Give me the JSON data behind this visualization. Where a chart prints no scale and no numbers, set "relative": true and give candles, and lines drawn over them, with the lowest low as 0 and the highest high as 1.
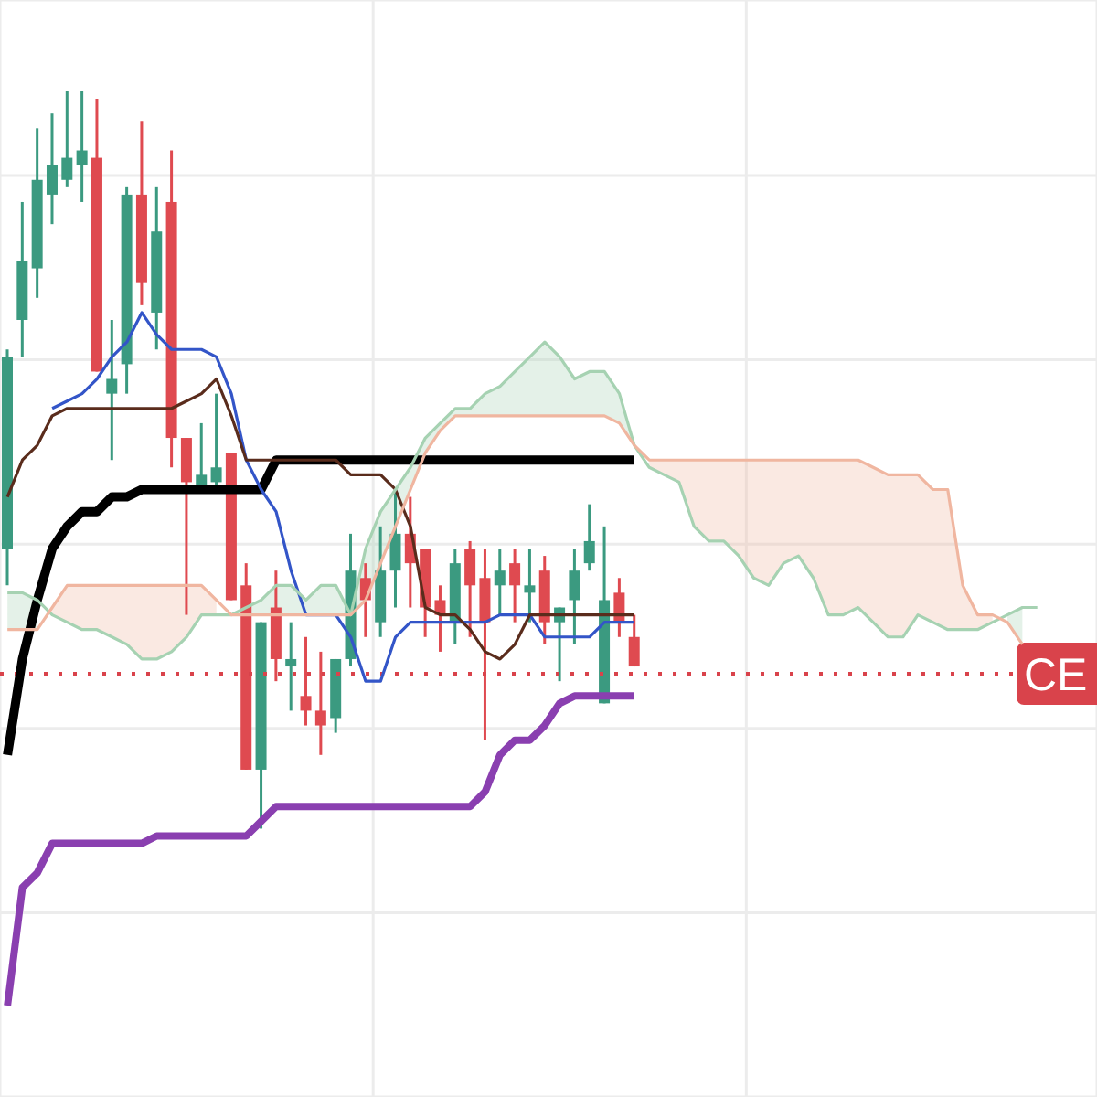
{
  "chart_data": {
    "type": "candlestick",
    "relative": true,
    "grid": true,
    "categories": [
      null,
      null,
      null,
      null,
      null,
      null,
      null,
      null,
      null,
      null,
      null,
      null,
      null,
      null,
      null,
      null,
      null,
      null,
      null,
      null,
      null,
      null,
      null,
      null,
      null,
      null,
      null,
      null,
      null,
      null,
      null,
      null,
      null,
      null,
      null,
      null,
      null,
      null,
      null,
      null,
      null,
      null,
      null,
      null,
      null,
      null,
      null,
      null,
      null,
      null,
      null,
      null,
      null,
      null,
      null,
      null,
      null,
      null,
      null,
      null,
      null,
      null,
      null,
      null,
      null,
      null,
      null,
      null,
      null,
      null
    ],
    "ohlc": [
      [
        0.38,
        0.65,
        0.33,
        0.64
      ],
      [
        0.69,
        0.85,
        0.64,
        0.77
      ],
      [
        0.76,
        0.95,
        0.72,
        0.88
      ],
      [
        0.86,
        0.97,
        0.82,
        0.9
      ],
      [
        0.88,
        1.0,
        0.87,
        0.91
      ],
      [
        0.9,
        1.0,
        0.85,
        0.92
      ],
      [
        0.91,
        0.99,
        0.62,
        0.62
      ],
      [
        0.59,
        0.69,
        0.5,
        0.61
      ],
      [
        0.63,
        0.87,
        0.59,
        0.86
      ],
      [
        0.86,
        0.96,
        0.71,
        0.74
      ],
      [
        0.7,
        0.87,
        0.65,
        0.81
      ],
      [
        0.85,
        0.92,
        0.49,
        0.53
      ],
      [
        0.53,
        0.53,
        0.29,
        0.47
      ],
      [
        0.46,
        0.55,
        0.46,
        0.48
      ],
      [
        0.47,
        0.59,
        0.46,
        0.49
      ],
      [
        0.51,
        0.51,
        0.31,
        0.31
      ],
      [
        0.33,
        0.36,
        0.08,
        0.08
      ],
      [
        0.08,
        0.28,
        0,
        0.28
      ],
      [
        0.3,
        0.35,
        0.2,
        0.23
      ],
      [
        0.22,
        0.28,
        0.16,
        0.23
      ],
      [
        0.18,
        0.26,
        0.14,
        0.16
      ],
      [
        0.16,
        0.24,
        0.1,
        0.14
      ],
      [
        0.15,
        0.23,
        0.13,
        0.23
      ],
      [
        0.23,
        0.4,
        0.22,
        0.35
      ],
      [
        0.34,
        0.36,
        0.26,
        0.31
      ],
      [
        0.28,
        0.41,
        0.26,
        0.35
      ],
      [
        0.35,
        0.46,
        0.3,
        0.4
      ],
      [
        0.4,
        0.45,
        0.3,
        0.36
      ],
      [
        0.38,
        0.38,
        0.26,
        0.3
      ],
      [
        0.31,
        0.33,
        0.24,
        0.29
      ],
      [
        0.28,
        0.38,
        0.25,
        0.36
      ],
      [
        0.38,
        0.39,
        0.26,
        0.33
      ],
      [
        0.34,
        0.38,
        0.12,
        0.28
      ],
      [
        0.33,
        0.38,
        0.29,
        0.35
      ],
      [
        0.36,
        0.38,
        0.28,
        0.33
      ],
      [
        0.32,
        0.38,
        0.28,
        0.33
      ],
      [
        0.35,
        0.37,
        0.25,
        0.28
      ],
      [
        0.28,
        0.3,
        0.2,
        0.3
      ],
      [
        0.31,
        0.38,
        0.25,
        0.35
      ],
      [
        0.36,
        0.44,
        0.35,
        0.39
      ],
      [
        0.17,
        0.41,
        0.17,
        0.31
      ],
      [
        0.32,
        0.34,
        0.26,
        0.28
      ],
      [
        0.26,
        0.29,
        0.22,
        0.22
      ],
      null,
      null,
      null,
      null,
      null,
      null,
      null,
      null,
      null,
      null,
      null,
      null,
      null,
      null,
      null,
      null,
      null,
      null,
      null,
      null,
      null,
      null,
      null,
      null,
      null,
      null,
      null
    ],
    "colors": [
      "#3b9a80",
      "#3b9a80",
      "#3b9a80",
      "#3b9a80",
      "#3b9a80",
      "#3b9a80",
      "#df4a50",
      "#3b9a80",
      "#3b9a80",
      "#df4a50",
      "#3b9a80",
      "#df4a50",
      "#df4a50",
      "#3b9a80",
      "#3b9a80",
      "#df4a50",
      "#df4a50",
      "#3b9a80",
      "#df4a50",
      "#3b9a80",
      "#df4a50",
      "#df4a50",
      "#3b9a80",
      "#3b9a80",
      "#df4a50",
      "#3b9a80",
      "#3b9a80",
      "#df4a50",
      "#df4a50",
      "#df4a50",
      "#3b9a80",
      "#df4a50",
      "#df4a50",
      "#3b9a80",
      "#df4a50",
      "#3b9a80",
      "#df4a50",
      "#3b9a80",
      "#3b9a80",
      "#3b9a80",
      "#3b9a80",
      "#df4a50",
      "#df4a50",
      null,
      null,
      null,
      null,
      null,
      null,
      null,
      null,
      null,
      null,
      null,
      null,
      null,
      null,
      null,
      null,
      null,
      null,
      null,
      null,
      null,
      null,
      null,
      null,
      null,
      null,
      null
    ],
    "series": [
      {
        "type": "line",
        "color": "#000000",
        "values": [
          0.1,
          0.23,
          0.31,
          0.38,
          0.41,
          0.43,
          0.43,
          0.45,
          0.45,
          0.46,
          0.46,
          0.46,
          0.46,
          0.46,
          0.46,
          0.46,
          0.46,
          0.46,
          0.5,
          0.5,
          0.5,
          0.5,
          0.5,
          0.5,
          0.5,
          0.5,
          0.5,
          0.5,
          0.5,
          0.5,
          0.5,
          0.5,
          0.5,
          0.5,
          0.5,
          0.5,
          0.5,
          0.5,
          0.5,
          0.5,
          0.5,
          0.5,
          0.5,
          null,
          null,
          null,
          null,
          null,
          null,
          null,
          null,
          null,
          null,
          null,
          null,
          null,
          null,
          null,
          null,
          null,
          null,
          null,
          null,
          null,
          null,
          null,
          null,
          null,
          null,
          null
        ]
      },
      {
        "type": "line",
        "color": "#8a3fb0",
        "values": [
          -0.24,
          -0.08,
          -0.06,
          -0.02,
          -0.02,
          -0.02,
          -0.02,
          -0.02,
          -0.02,
          -0.02,
          -0.01,
          -0.01,
          -0.01,
          -0.01,
          -0.01,
          -0.01,
          -0.01,
          0.01,
          0.03,
          0.03,
          0.03,
          0.03,
          0.03,
          0.03,
          0.03,
          0.03,
          0.03,
          0.03,
          0.03,
          0.03,
          0.03,
          0.03,
          0.05,
          0.1,
          0.12,
          0.12,
          0.14,
          0.17,
          0.18,
          0.18,
          0.18,
          0.18,
          0.18,
          null,
          null,
          null,
          null,
          null,
          null,
          null,
          null,
          null,
          null,
          null,
          null,
          null,
          null,
          null,
          null,
          null,
          null,
          null,
          null,
          null,
          null,
          null,
          null,
          null,
          null,
          null
        ]
      },
      {
        "type": "line",
        "color": "#3355c8",
        "values": [
          null,
          null,
          null,
          0.57,
          0.58,
          0.59,
          0.61,
          0.64,
          0.66,
          0.7,
          0.67,
          0.65,
          0.65,
          0.65,
          0.64,
          0.59,
          0.5,
          0.46,
          0.43,
          0.35,
          0.29,
          0.29,
          0.29,
          0.26,
          0.2,
          0.2,
          0.26,
          0.28,
          0.28,
          0.28,
          0.28,
          0.28,
          0.28,
          0.29,
          0.29,
          0.29,
          0.26,
          0.26,
          0.26,
          0.26,
          0.28,
          0.28,
          0.28,
          null,
          null,
          null,
          null,
          null,
          null,
          null,
          null,
          null,
          null,
          null,
          null,
          null,
          null,
          null,
          null,
          null,
          null,
          null,
          null,
          null,
          null,
          null,
          null,
          null,
          null,
          null
        ]
      },
      {
        "type": "line",
        "color": "#5a2c1c",
        "values": [
          0.45,
          0.5,
          0.52,
          0.56,
          0.57,
          0.57,
          0.57,
          0.57,
          0.57,
          0.57,
          0.57,
          0.57,
          0.58,
          0.59,
          0.61,
          0.56,
          0.5,
          0.5,
          0.5,
          0.5,
          0.5,
          0.5,
          0.5,
          0.48,
          0.48,
          0.48,
          0.46,
          0.41,
          0.3,
          0.29,
          0.29,
          0.27,
          0.24,
          0.23,
          0.25,
          0.29,
          0.29,
          0.29,
          0.29,
          0.29,
          0.29,
          0.29,
          0.29,
          null,
          null,
          null,
          null,
          null,
          null,
          null,
          null,
          null,
          null,
          null,
          null,
          null,
          null,
          null,
          null,
          null,
          null,
          null,
          null,
          null,
          null,
          null,
          null,
          null,
          null,
          null
        ]
      },
      {
        "type": "line",
        "color": "#a6d2b2",
        "upper": [
          0.32,
          0.32,
          0.31,
          null,
          null,
          null,
          null,
          null,
          null,
          null,
          null,
          null,
          null,
          null,
          null,
          0.29,
          0.3,
          0.31,
          0.33,
          0.33,
          0.31,
          0.33,
          0.33,
          0.29,
          0.38,
          0.43,
          0.46,
          0.49,
          0.53,
          0.55,
          0.57,
          0.57,
          0.59,
          0.6,
          0.62,
          0.64,
          0.66,
          0.64,
          0.61,
          0.62,
          0.62,
          0.59,
          0.52,
          null,
          null,
          null,
          null,
          null,
          null,
          null,
          null,
          null,
          null,
          null,
          null,
          null,
          null,
          null,
          null,
          null,
          null,
          null,
          null,
          null,
          null,
          null,
          null,
          0.29,
          0.3,
          null
        ],
        "lower": [
          0.27,
          0.27,
          0.27,
          null,
          null,
          null,
          null,
          null,
          null,
          null,
          null,
          null,
          null,
          null,
          null,
          0.29,
          0.29,
          0.29,
          0.29,
          0.29,
          0.29,
          0.29,
          0.29,
          0.29,
          0.31,
          0.36,
          0.41,
          0.46,
          0.51,
          0.54,
          0.56,
          0.56,
          0.56,
          0.56,
          0.56,
          0.56,
          0.56,
          0.56,
          0.56,
          0.56,
          0.56,
          0.55,
          0.52,
          null,
          null,
          null,
          null,
          null,
          null,
          null,
          null,
          null,
          null,
          null,
          null,
          null,
          null,
          null,
          null,
          null,
          null,
          null,
          null,
          null,
          null,
          null,
          null,
          0.28,
          0.25,
          null
        ],
        "values": [
          0.32,
          0.32,
          0.31,
          0.29,
          0.28,
          0.27,
          0.27,
          0.26,
          0.25,
          0.23,
          0.23,
          0.24,
          0.26,
          0.29,
          0.29,
          0.29,
          0.3,
          0.31,
          0.33,
          0.33,
          0.31,
          0.33,
          0.33,
          0.29,
          0.38,
          0.43,
          0.46,
          0.49,
          0.53,
          0.55,
          0.57,
          0.57,
          0.59,
          0.6,
          0.62,
          0.64,
          0.66,
          0.64,
          0.61,
          0.62,
          0.62,
          0.59,
          0.52,
          0.49,
          0.48,
          0.47,
          0.41,
          0.39,
          0.39,
          0.37,
          0.34,
          0.33,
          0.36,
          0.37,
          0.34,
          0.29,
          0.29,
          0.3,
          0.28,
          0.26,
          0.26,
          0.29,
          0.28,
          0.27,
          0.27,
          0.27,
          0.28,
          0.29,
          0.3,
          0.3
        ]
      },
      {
        "type": "line",
        "color": "#f0b6a0",
        "upper": [
          null,
          null,
          null,
          0.3,
          0.33,
          0.33,
          0.33,
          0.33,
          0.33,
          0.33,
          0.33,
          0.33,
          0.33,
          0.33,
          0.31,
          null,
          null,
          null,
          null,
          null,
          null,
          null,
          null,
          null,
          null,
          null,
          null,
          null,
          null,
          null,
          null,
          null,
          null,
          null,
          null,
          null,
          null,
          null,
          null,
          null,
          null,
          null,
          null,
          0.5,
          0.5,
          0.5,
          0.5,
          0.5,
          0.5,
          0.5,
          0.5,
          0.5,
          0.5,
          0.5,
          0.5,
          0.5,
          0.5,
          0.5,
          0.49,
          0.48,
          0.48,
          0.48,
          0.46,
          0.46,
          0.33,
          0.29,
          0.29,
          null,
          null,
          null
        ],
        "lower": [
          null,
          null,
          null,
          0.29,
          0.28,
          0.27,
          0.27,
          0.26,
          0.25,
          0.23,
          0.23,
          0.24,
          0.26,
          0.29,
          0.29,
          null,
          null,
          null,
          null,
          null,
          null,
          null,
          null,
          null,
          null,
          null,
          null,
          null,
          null,
          null,
          null,
          null,
          null,
          null,
          null,
          null,
          null,
          null,
          null,
          null,
          null,
          null,
          null,
          0.49,
          0.48,
          0.47,
          0.41,
          0.39,
          0.39,
          0.37,
          0.34,
          0.33,
          0.36,
          0.37,
          0.34,
          0.29,
          0.29,
          0.3,
          0.28,
          0.26,
          0.26,
          0.29,
          0.28,
          0.27,
          0.27,
          0.27,
          0.28,
          null,
          null,
          null
        ],
        "values": [
          0.27,
          0.27,
          0.27,
          0.3,
          0.33,
          0.33,
          0.33,
          0.33,
          0.33,
          0.33,
          0.33,
          0.33,
          0.33,
          0.33,
          0.31,
          0.29,
          0.29,
          0.29,
          0.29,
          0.29,
          0.29,
          0.29,
          0.29,
          0.29,
          0.31,
          0.36,
          0.41,
          0.46,
          0.51,
          0.54,
          0.56,
          0.56,
          0.56,
          0.56,
          0.56,
          0.56,
          0.56,
          0.56,
          0.56,
          0.56,
          0.56,
          0.55,
          0.52,
          0.5,
          0.5,
          0.5,
          0.5,
          0.5,
          0.5,
          0.5,
          0.5,
          0.5,
          0.5,
          0.5,
          0.5,
          0.5,
          0.5,
          0.5,
          0.49,
          0.48,
          0.48,
          0.48,
          0.46,
          0.46,
          0.33,
          0.29,
          0.29,
          0.28,
          0.25,
          null
        ]
      }
    ],
    "ref_lines": [
      {
        "axis": "y",
        "value": 0.21,
        "label": "CE",
        "color": "#d9434b",
        "line_style": "dotted"
      }
    ]
  }
}
